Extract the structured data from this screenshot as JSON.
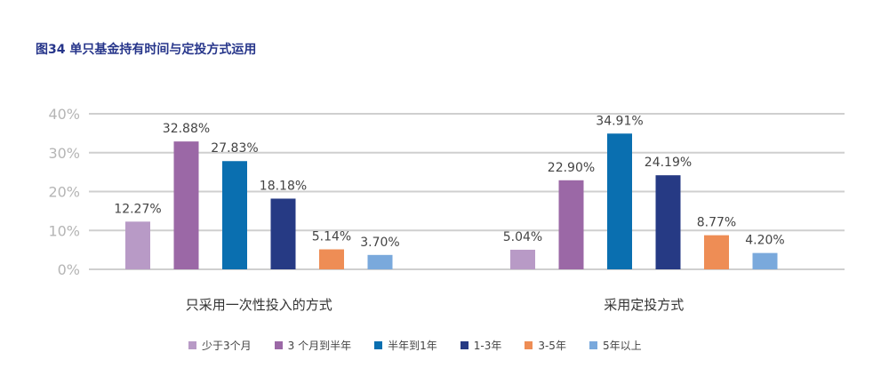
{
  "chart_data": {
    "type": "bar",
    "title": "图34 单只基金持有时间与定投方式运用",
    "categories": [
      "只采用一次性投入的方式",
      "采用定投方式"
    ],
    "series": [
      {
        "name": "少于3个月",
        "color": "#b89ac6",
        "values": [
          12.27,
          5.04
        ]
      },
      {
        "name": "3 个月到半年",
        "color": "#9b68a6",
        "values": [
          32.88,
          22.9
        ]
      },
      {
        "name": "半年到1年",
        "color": "#0a6fb0",
        "values": [
          27.83,
          34.91
        ]
      },
      {
        "name": "1-3年",
        "color": "#263a84",
        "values": [
          18.18,
          24.19
        ]
      },
      {
        "name": "3-5年",
        "color": "#ee8d55",
        "values": [
          5.14,
          8.77
        ]
      },
      {
        "name": "5年以上",
        "color": "#7aa9dc",
        "values": [
          3.7,
          4.2
        ]
      }
    ],
    "data_labels": [
      [
        "12.27%",
        "5.04%"
      ],
      [
        "32.88%",
        "22.90%"
      ],
      [
        "27.83%",
        "34.91%"
      ],
      [
        "18.18%",
        "24.19%"
      ],
      [
        "5.14%",
        "8.77%"
      ],
      [
        "3.70%",
        "4.20%"
      ]
    ],
    "yticks": [
      "0%",
      "10%",
      "20%",
      "30%",
      "40%"
    ],
    "ylim": [
      0,
      40
    ],
    "grid": true,
    "legend": "bottom"
  }
}
